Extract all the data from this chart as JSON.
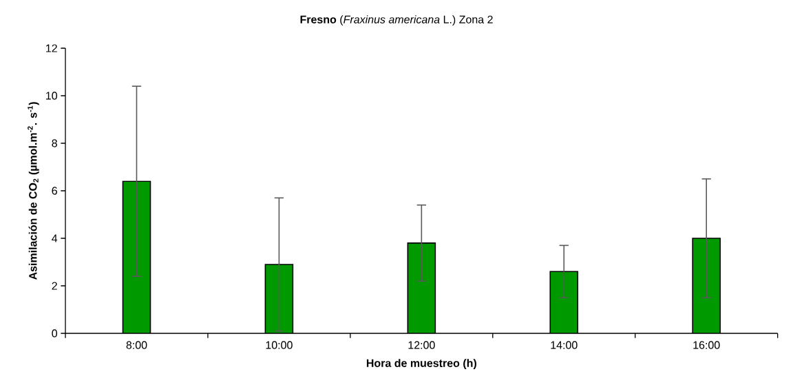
{
  "chart_data": {
    "type": "bar",
    "title": "**Fresno** (*Fraxinus americana* L.) Zona 2",
    "xlabel": "Hora de muestreo (h)",
    "ylabel": "Asimilación de CO$_{2}$ (µmol.m$^{-2}$. s$^{-1}$)",
    "categories": [
      "8:00",
      "10:00",
      "12:00",
      "14:00",
      "16:00"
    ],
    "values": [
      6.4,
      2.9,
      3.8,
      2.6,
      4.0
    ],
    "errors": [
      4.0,
      2.8,
      1.6,
      1.1,
      2.5
    ],
    "color": "#009900",
    "ylim": [
      0,
      12
    ],
    "yticks": [
      0,
      2,
      4,
      6,
      8,
      10,
      12
    ]
  }
}
